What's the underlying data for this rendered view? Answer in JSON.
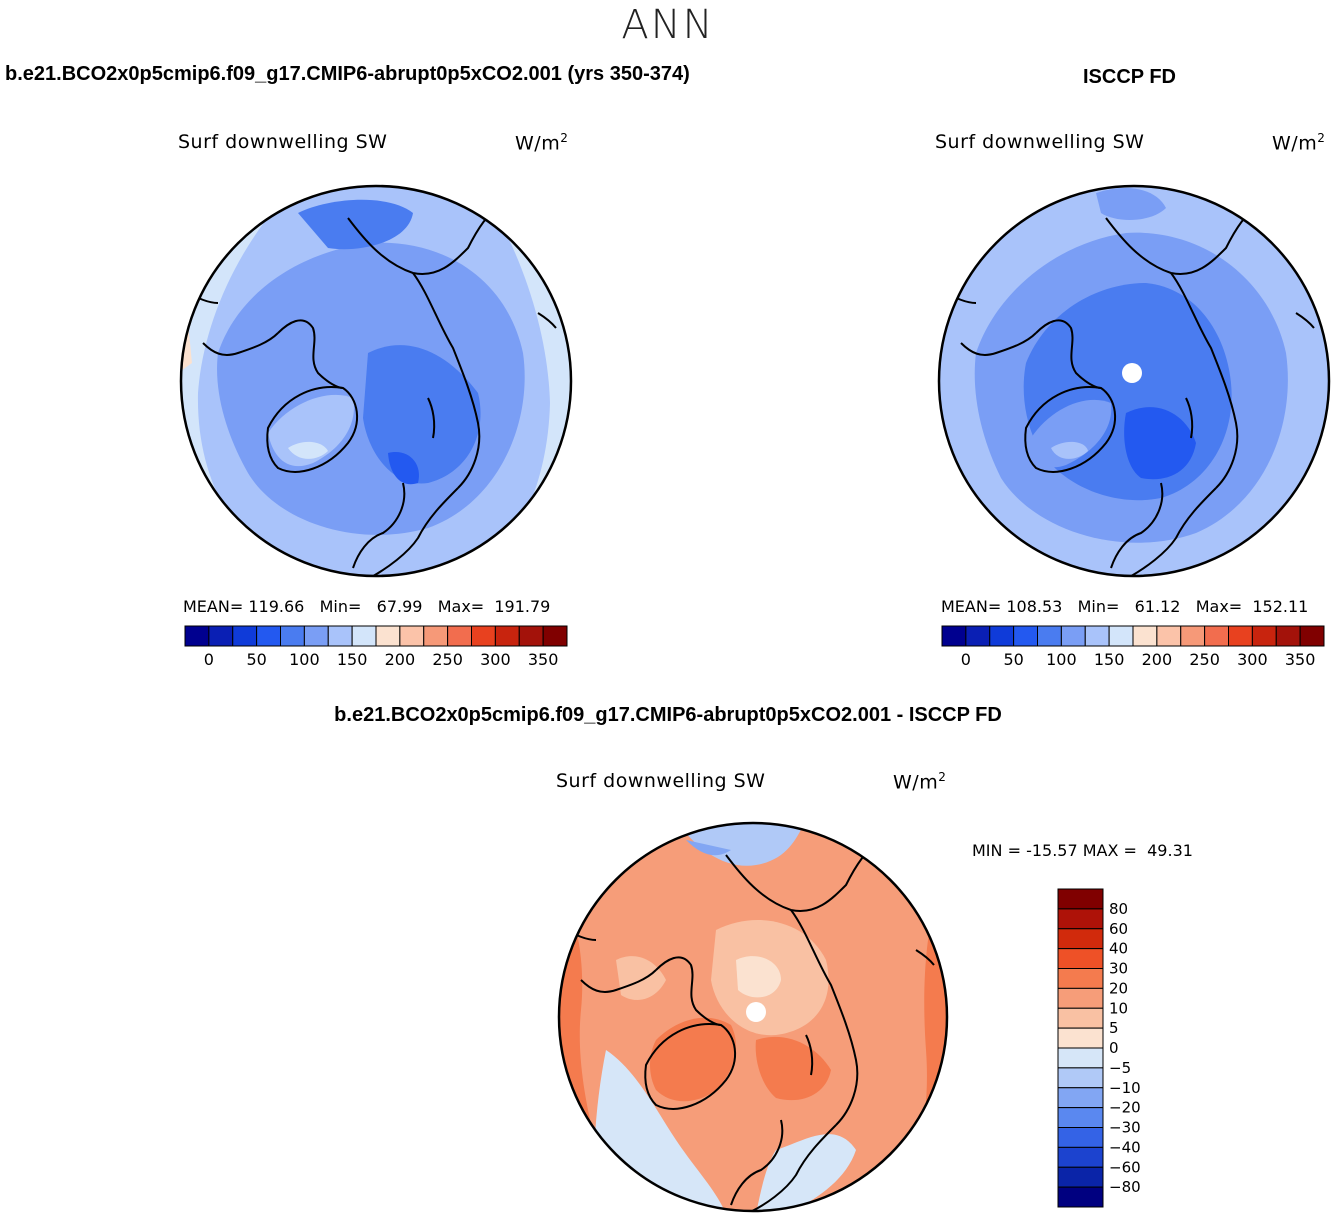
{
  "season": "ANN",
  "panels": {
    "model": {
      "title": "b.e21.BCO2x0p5cmip6.f09_g17.CMIP6-abrupt0p5xCO2.001 (yrs 350-374)",
      "variable": "Surf downwelling SW",
      "units": "W/m",
      "units_exp": "2",
      "mean_label": "MEAN=",
      "mean_value": "119.66",
      "min_label": "Min=",
      "min_value": "67.99",
      "max_label": "Max=",
      "max_value": "191.79"
    },
    "obs": {
      "title": "ISCCP FD",
      "variable": "Surf downwelling SW",
      "units": "W/m",
      "units_exp": "2",
      "mean_label": "MEAN=",
      "mean_value": "108.53",
      "min_label": "Min=",
      "min_value": "61.12",
      "max_label": "Max=",
      "max_value": "152.11"
    },
    "diff": {
      "title": "b.e21.BCO2x0p5cmip6.f09_g17.CMIP6-abrupt0p5xCO2.001 - ISCCP FD",
      "variable": "Surf downwelling SW",
      "units": "W/m",
      "units_exp": "2",
      "min_label": "MIN =",
      "min_value": "-15.57",
      "max_label": "MAX =",
      "max_value": "49.31"
    }
  },
  "colorbars": {
    "horizontal": {
      "colors": [
        "#00008f",
        "#0a1fb4",
        "#0f3bd9",
        "#2359f0",
        "#4a7cf0",
        "#7a9ef5",
        "#a9c3fa",
        "#d3e5fa",
        "#fbe2d0",
        "#fbc3a9",
        "#f69978",
        "#f26d4e",
        "#e8411f",
        "#c8240e",
        "#a3120a",
        "#800000"
      ],
      "tick_labels": [
        "0",
        "50",
        "100",
        "150",
        "200",
        "250",
        "300",
        "350"
      ]
    },
    "vertical": {
      "colors": [
        "#800000",
        "#ae1208",
        "#d12a0c",
        "#ee5127",
        "#f47b4e",
        "#f69d79",
        "#f9c1a3",
        "#fbe2d0",
        "#d6e6f8",
        "#b0c9f7",
        "#82a6f3",
        "#5a88f0",
        "#3463e6",
        "#1c43cf",
        "#0a24a8",
        "#000080"
      ],
      "tick_labels": [
        "80",
        "60",
        "40",
        "30",
        "20",
        "10",
        "5",
        "0",
        "−5",
        "−10",
        "−20",
        "−30",
        "−40",
        "−60",
        "−80"
      ]
    }
  }
}
